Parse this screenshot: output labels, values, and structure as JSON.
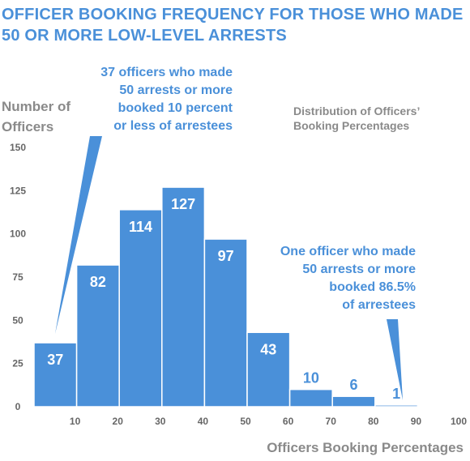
{
  "chart_data": {
    "type": "bar",
    "title": [
      "OFFICER BOOKING FREQUENCY FOR THOSE WHO MADE",
      "50 OR MORE LOW-LEVEL ARRESTS"
    ],
    "subtitle": [
      "Distribution of Officers’",
      "Booking Percentages"
    ],
    "ylabel": [
      "Number of",
      "Officers"
    ],
    "xlabel": "Officers Booking Percentages",
    "xlim": [
      0,
      100
    ],
    "ylim": [
      0,
      150
    ],
    "x_ticks": [
      10,
      20,
      30,
      40,
      50,
      60,
      70,
      80,
      90,
      100
    ],
    "y_ticks": [
      0,
      25,
      50,
      75,
      100,
      125,
      150
    ],
    "bins": [
      {
        "from": 0,
        "to": 10,
        "value": 37,
        "label": "37"
      },
      {
        "from": 10,
        "to": 20,
        "value": 82,
        "label": "82"
      },
      {
        "from": 20,
        "to": 30,
        "value": 114,
        "label": "114"
      },
      {
        "from": 30,
        "to": 40,
        "value": 127,
        "label": "127"
      },
      {
        "from": 40,
        "to": 50,
        "value": 97,
        "label": "97"
      },
      {
        "from": 50,
        "to": 60,
        "value": 43,
        "label": "43"
      },
      {
        "from": 60,
        "to": 70,
        "value": 10,
        "label": "10"
      },
      {
        "from": 70,
        "to": 80,
        "value": 6,
        "label": "6"
      },
      {
        "from": 80,
        "to": 90,
        "value": 1,
        "label": "1"
      }
    ],
    "annotations": [
      {
        "text": [
          "37 officers who made",
          "50 arrests or more",
          "booked 10 percent",
          "or less of arrestees"
        ]
      },
      {
        "text": [
          "One officer who made",
          "50 arrests or more",
          "booked 86.5%",
          "of arrestees"
        ]
      }
    ],
    "colors": {
      "bar": "#4a90d9",
      "bar_edge": "#ffffff",
      "title": "#4a90d9",
      "label": "#8a8a8a"
    },
    "grid": false
  }
}
